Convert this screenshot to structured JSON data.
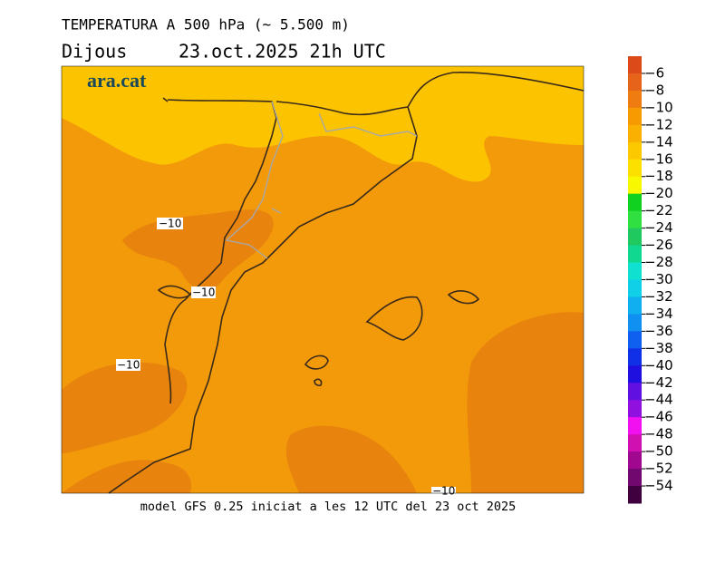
{
  "header": {
    "title": "TEMPERATURA A 500 hPa (~ 5.500 m)",
    "day": "Dijous",
    "date": "23.oct.2025 21h UTC"
  },
  "logo": "ara.cat",
  "contour_labels": [
    "−10",
    "−10",
    "−10",
    "−10"
  ],
  "footer": "model GFS 0.25 iniciat a les 12 UTC del 23 oct 2025",
  "colorbar": {
    "labels": [
      "−6",
      "−8",
      "−10",
      "−12",
      "−14",
      "−16",
      "−18",
      "−20",
      "−22",
      "−24",
      "−26",
      "−28",
      "−30",
      "−32",
      "−34",
      "−36",
      "−38",
      "−40",
      "−42",
      "−44",
      "−46",
      "−48",
      "−50",
      "−52",
      "−54"
    ],
    "colors": [
      "#dd4a1a",
      "#e6641a",
      "#ee7c10",
      "#f59a00",
      "#fab000",
      "#fcc800",
      "#fce000",
      "#f8f800",
      "#10d020",
      "#30e040",
      "#20c860",
      "#10d890",
      "#10e0d0",
      "#10d0e8",
      "#10b0f0",
      "#1090f0",
      "#1060f0",
      "#1030e8",
      "#2010e0",
      "#6010e0",
      "#9010e0",
      "#f010f0",
      "#d010b0",
      "#a00890",
      "#700870",
      "#400040"
    ]
  }
}
